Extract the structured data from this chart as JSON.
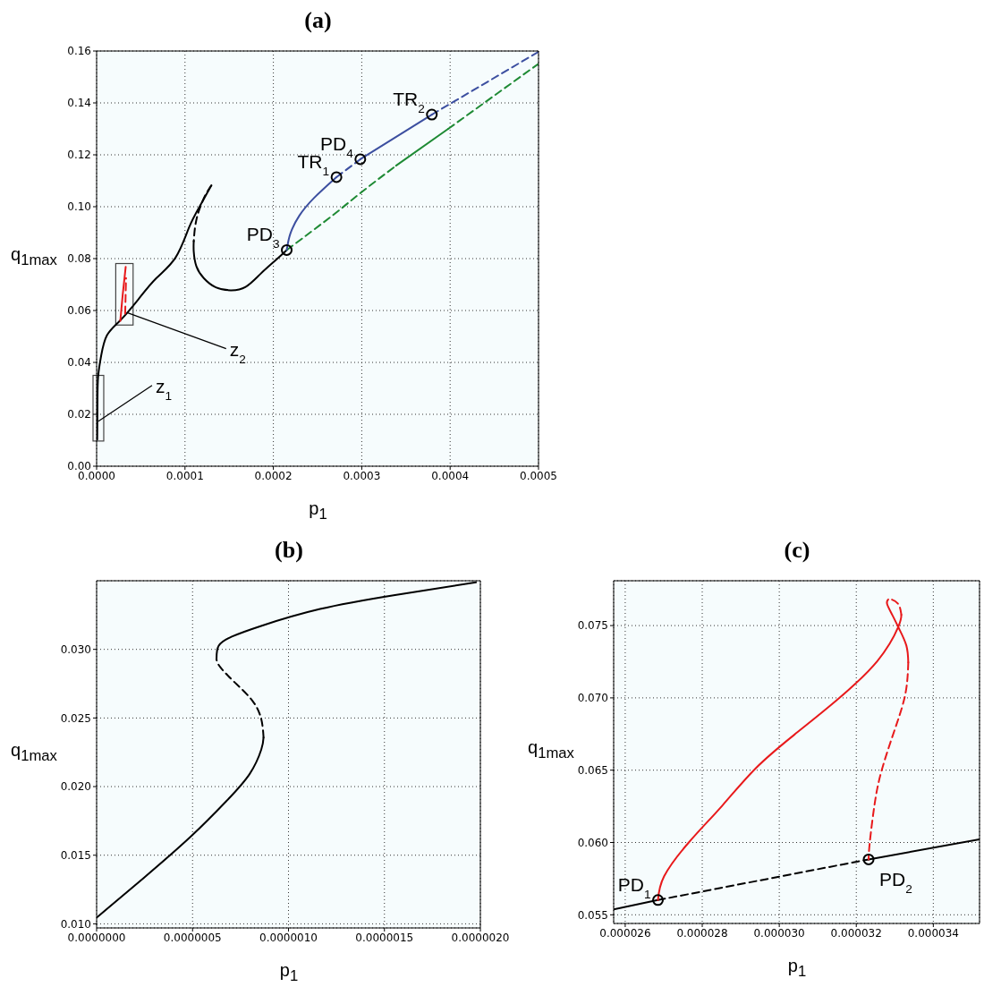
{
  "chart_data": [
    {
      "type": "line",
      "title": "(a)",
      "xlabel": "p$_{1}$",
      "ylabel": "q$_{1max}$",
      "xlim": [
        0,
        0.0005
      ],
      "ylim": [
        0,
        0.16
      ],
      "xticks": [
        {
          "value": 0,
          "label": "0.0000"
        },
        {
          "value": 0.0001,
          "label": "0.0001"
        },
        {
          "value": 0.0002,
          "label": "0.0002"
        },
        {
          "value": 0.0003,
          "label": "0.0003"
        },
        {
          "value": 0.0004,
          "label": "0.0004"
        },
        {
          "value": 0.0005,
          "label": "0.0005"
        }
      ],
      "yticks": [
        {
          "value": 0,
          "label": "0.00"
        },
        {
          "value": 0.02,
          "label": "0.02"
        },
        {
          "value": 0.04,
          "label": "0.04"
        },
        {
          "value": 0.06,
          "label": "0.06"
        },
        {
          "value": 0.08,
          "label": "0.08"
        },
        {
          "value": 0.1,
          "label": "0.10"
        },
        {
          "value": 0.12,
          "label": "0.12"
        },
        {
          "value": 0.14,
          "label": "0.14"
        },
        {
          "value": 0.16,
          "label": "0.16"
        }
      ],
      "grid": true,
      "series": [
        {
          "color": "#000000",
          "line_style": "solid",
          "x": [
            7e-07,
            1e-06,
            1.7e-06,
            5.1e-06,
            1.18e-05,
            2.7e-05,
            4.72e-05,
            6.74e-05,
            8.93e-05,
            0.0001045,
            0.0001163,
            0.0001298
          ],
          "values": [
            0.0103,
            0.0253,
            0.0345,
            0.0425,
            0.0505,
            0.0563,
            0.0643,
            0.0724,
            0.0804,
            0.0919,
            0.0999,
            0.1082
          ]
        },
        {
          "color": "#000000",
          "line_style": "dashed",
          "x": [
            0.0001298,
            0.0001231,
            0.000118,
            0.000114,
            0.0001113,
            0.0001099
          ],
          "values": [
            0.1082,
            0.1045,
            0.1005,
            0.0965,
            0.0919,
            0.0867
          ]
        },
        {
          "color": "#000000",
          "line_style": "solid",
          "x": [
            0.0001099,
            0.0001099,
            0.0001129,
            0.0001214,
            0.0001349,
            0.0001517,
            0.0001686,
            0.0001854,
            0.0002023,
            0.0002151
          ],
          "values": [
            0.0867,
            0.0827,
            0.077,
            0.0724,
            0.0689,
            0.0678,
            0.0691,
            0.0741,
            0.0793,
            0.0833
          ]
        },
        {
          "color": "#e8191b",
          "line_style": "solid",
          "x": [
            2.68e-05,
            2.95e-05,
            3.29e-05
          ],
          "values": [
            0.056,
            0.066,
            0.0768
          ]
        },
        {
          "color": "#e8191b",
          "line_style": "dashed",
          "x": [
            3.23e-05,
            3.33e-05
          ],
          "values": [
            0.0588,
            0.0725
          ]
        },
        {
          "color": "#1e8a34",
          "line_style": "dashed",
          "x": [
            0.0002151,
            0.0002664,
            0.0003001,
            0.0003388
          ],
          "values": [
            0.0833,
            0.0965,
            0.1057,
            0.1158
          ]
        },
        {
          "color": "#1e8a34",
          "line_style": "solid",
          "x": [
            0.0003388,
            0.0003978
          ],
          "values": [
            0.1158,
            0.13
          ]
        },
        {
          "color": "#1e8a34",
          "line_style": "dashed",
          "x": [
            0.0003978,
            0.0005
          ],
          "values": [
            0.13,
            0.1551
          ]
        },
        {
          "color": "#3c4fa0",
          "line_style": "solid",
          "x": [
            0.0002151,
            0.0002192,
            0.0002293,
            0.0002461,
            0.0002714
          ],
          "values": [
            0.0833,
            0.0896,
            0.0965,
            0.1034,
            0.1114
          ]
        },
        {
          "color": "#3c4fa0",
          "line_style": "dashed",
          "x": [
            0.0002714,
            0.0002984
          ],
          "values": [
            0.1114,
            0.1183
          ]
        },
        {
          "color": "#3c4fa0",
          "line_style": "solid",
          "x": [
            0.0002984,
            0.0003793
          ],
          "values": [
            0.1183,
            0.1355
          ]
        },
        {
          "color": "#3c4fa0",
          "line_style": "dashed",
          "x": [
            0.0003793,
            0.0005
          ],
          "values": [
            0.1355,
            0.1597
          ]
        },
        {
          "type": "scatter",
          "marker": "circle",
          "color": "#000000",
          "x": [
            0.0002151,
            0.0002714,
            0.0002984,
            0.0003793
          ],
          "values": [
            0.0833,
            0.1114,
            0.1183,
            0.1355
          ]
        }
      ],
      "annotations": [
        {
          "text": "z$_{2}$",
          "x": 3.52e-05,
          "y": 0.0591
        },
        {
          "text": "z$_{1}$",
          "x": 2e-06,
          "y": 0.0173
        },
        {
          "text": "PD$_{3}$",
          "x": 0.0002151,
          "y": 0.0833
        },
        {
          "text": "TR$_{1}$",
          "x": 0.0002714,
          "y": 0.1114
        },
        {
          "text": "PD$_{4}$",
          "x": 0.0002984,
          "y": 0.1183
        },
        {
          "text": "TR$_{2}$",
          "x": 0.0003793,
          "y": 0.1355
        }
      ]
    },
    {
      "type": "line",
      "title": "(b)",
      "xlabel": "p$_{1}$",
      "ylabel": "q$_{1max}$",
      "xlim": [
        0,
        2e-06
      ],
      "ylim": [
        0.0097,
        0.035
      ],
      "xticks": [
        {
          "value": 0,
          "label": "0.0000000"
        },
        {
          "value": 5e-07,
          "label": "0.0000005"
        },
        {
          "value": 1e-06,
          "label": "0.0000010"
        },
        {
          "value": 1.5e-06,
          "label": "0.0000015"
        },
        {
          "value": 2e-06,
          "label": "0.0000020"
        }
      ],
      "yticks": [
        {
          "value": 0.01,
          "label": "0.010"
        },
        {
          "value": 0.015,
          "label": "0.015"
        },
        {
          "value": 0.02,
          "label": "0.020"
        },
        {
          "value": 0.025,
          "label": "0.025"
        },
        {
          "value": 0.03,
          "label": "0.030"
        }
      ],
      "grid": true,
      "series": [
        {
          "color": "#000000",
          "line_style": "solid",
          "x": [
            0,
            2.45e-07,
            4.9e-07,
            6.74e-07,
            7.97e-07,
            8.58e-07,
            8.7e-07
          ],
          "values": [
            0.01045,
            0.01334,
            0.01635,
            0.01891,
            0.02091,
            0.02269,
            0.02358
          ]
        },
        {
          "color": "#000000",
          "line_style": "dashed",
          "x": [
            8.7e-07,
            8.58e-07,
            8.12e-07,
            7.2e-07,
            6.44e-07,
            6.25e-07
          ],
          "values": [
            0.02358,
            0.02492,
            0.02626,
            0.02759,
            0.02871,
            0.02926
          ]
        },
        {
          "color": "#000000",
          "line_style": "solid",
          "x": [
            6.25e-07,
            6.36e-07,
            7.05e-07,
            8.58e-07,
            1.165e-06,
            1.548e-06,
            1.977e-06
          ],
          "values": [
            0.02926,
            0.03026,
            0.03093,
            0.03171,
            0.03294,
            0.03394,
            0.03488
          ]
        }
      ]
    },
    {
      "type": "line",
      "title": "(c)",
      "xlabel": "p$_{1}$",
      "ylabel": "q$_{1max}$",
      "xlim": [
        2.57e-05,
        3.52e-05
      ],
      "ylim": [
        0.0544,
        0.0781
      ],
      "xticks": [
        {
          "value": 2.6e-05,
          "label": "0.000026"
        },
        {
          "value": 2.8e-05,
          "label": "0.000028"
        },
        {
          "value": 3e-05,
          "label": "0.000030"
        },
        {
          "value": 3.2e-05,
          "label": "0.000032"
        },
        {
          "value": 3.4e-05,
          "label": "0.000034"
        }
      ],
      "yticks": [
        {
          "value": 0.055,
          "label": "0.055"
        },
        {
          "value": 0.06,
          "label": "0.060"
        },
        {
          "value": 0.065,
          "label": "0.065"
        },
        {
          "value": 0.07,
          "label": "0.070"
        },
        {
          "value": 0.075,
          "label": "0.075"
        }
      ],
      "grid": true,
      "series": [
        {
          "color": "#000000",
          "line_style": "solid",
          "x": [
            2.57e-05,
            2.685e-05
          ],
          "values": [
            0.05538,
            0.05602
          ]
        },
        {
          "color": "#000000",
          "line_style": "dashed",
          "x": [
            2.685e-05,
            3.232e-05
          ],
          "values": [
            0.05602,
            0.05883
          ]
        },
        {
          "color": "#000000",
          "line_style": "solid",
          "x": [
            3.232e-05,
            3.52e-05
          ],
          "values": [
            0.05883,
            0.06021
          ]
        },
        {
          "color": "#e8191b",
          "line_style": "solid",
          "x": [
            2.685e-05,
            2.701e-05,
            2.765e-05,
            2.852e-05,
            2.938e-05,
            3.039e-05,
            3.147e-05,
            3.255e-05,
            3.309e-05,
            3.317e-05
          ],
          "values": [
            0.05602,
            0.05766,
            0.06,
            0.06255,
            0.06511,
            0.06745,
            0.06979,
            0.07256,
            0.0749,
            0.07575
          ]
        },
        {
          "color": "#e8191b",
          "line_style": "dashed",
          "x": [
            3.317e-05,
            3.309e-05,
            3.291e-05,
            3.283e-05
          ],
          "values": [
            0.07575,
            0.07649,
            0.07681,
            0.07681
          ]
        },
        {
          "color": "#e8191b",
          "line_style": "solid",
          "x": [
            3.283e-05,
            3.28e-05,
            3.294e-05,
            3.311e-05,
            3.33e-05,
            3.335e-05
          ],
          "values": [
            0.07681,
            0.07649,
            0.07571,
            0.07479,
            0.07362,
            0.07245
          ]
        },
        {
          "color": "#e8191b",
          "line_style": "dashed",
          "x": [
            3.335e-05,
            3.327e-05,
            3.298e-05,
            3.265e-05,
            3.247e-05,
            3.235e-05,
            3.232e-05
          ],
          "values": [
            0.07245,
            0.07022,
            0.06766,
            0.0649,
            0.06255,
            0.06,
            0.05883
          ]
        },
        {
          "type": "scatter",
          "marker": "circle",
          "color": "#000000",
          "x": [
            2.685e-05,
            3.232e-05
          ],
          "values": [
            0.05602,
            0.05883
          ]
        }
      ],
      "annotations": [
        {
          "text": "PD$_{1}$",
          "x": 2.685e-05,
          "y": 0.05602
        },
        {
          "text": "PD$_{2}$",
          "x": 3.232e-05,
          "y": 0.05883
        }
      ]
    }
  ]
}
